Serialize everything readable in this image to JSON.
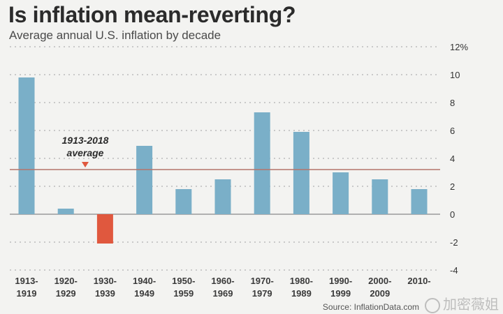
{
  "title": "Is inflation mean-reverting?",
  "subtitle": "Average annual U.S. inflation by decade",
  "source": "Source: InflationData.com",
  "watermark": "加密薇姐",
  "colors": {
    "positive": "#7aafc8",
    "negative": "#e0583e",
    "average_line": "#b5756a",
    "background": "#f3f3f1"
  },
  "chart_data": {
    "type": "bar",
    "title": "Is inflation mean-reverting?",
    "subtitle": "Average annual U.S. inflation by decade",
    "xlabel": "",
    "ylabel": "",
    "ylim": [
      -4,
      12
    ],
    "yticks": [
      {
        "value": 12,
        "label": "12%"
      },
      {
        "value": 10,
        "label": "10"
      },
      {
        "value": 8,
        "label": "8"
      },
      {
        "value": 6,
        "label": "6"
      },
      {
        "value": 4,
        "label": "4"
      },
      {
        "value": 2,
        "label": "2"
      },
      {
        "value": 0,
        "label": "0"
      },
      {
        "value": -2,
        "label": "-2"
      },
      {
        "value": -4,
        "label": "-4"
      }
    ],
    "categories": [
      [
        "1913-",
        "1919"
      ],
      [
        "1920-",
        "1929"
      ],
      [
        "1930-",
        "1939"
      ],
      [
        "1940-",
        "1949"
      ],
      [
        "1950-",
        "1959"
      ],
      [
        "1960-",
        "1969"
      ],
      [
        "1970-",
        "1979"
      ],
      [
        "1980-",
        "1989"
      ],
      [
        "1990-",
        "1999"
      ],
      [
        "2000-",
        "2009"
      ],
      [
        "2010-",
        ""
      ]
    ],
    "values": [
      9.8,
      0.4,
      -2.1,
      4.9,
      1.8,
      2.5,
      7.3,
      5.9,
      3.0,
      2.5,
      1.8
    ],
    "average": {
      "value": 3.2,
      "label_line1": "1913-2018",
      "label_line2": "average"
    },
    "grid": true
  }
}
